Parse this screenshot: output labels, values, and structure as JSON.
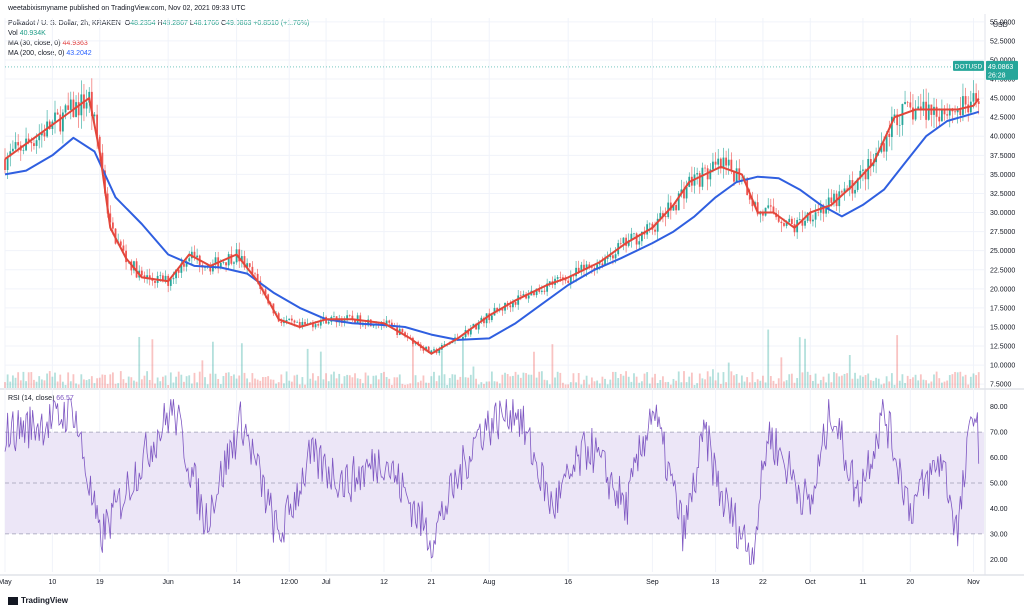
{
  "meta": {
    "author_line": "weetabixismyname published on TradingView.com, Nov 02, 2021 09:33 UTC",
    "brand": "TradingView"
  },
  "legend": {
    "symbol": "Polkadot / U. S. Dollar, 2h, KRAKEN",
    "o_label": "O",
    "o": "48.2354",
    "h_label": "H",
    "h": "49.2867",
    "l_label": "L",
    "l": "48.1766",
    "c_label": "C",
    "c": "49.0863",
    "change": "+0.8510 (+1.76%)",
    "vol_label": "Vol",
    "vol": "40.934K",
    "ma30_label": "MA (30, close, 0)",
    "ma30": "44.9363",
    "ma200_label": "MA (200, close, 0)",
    "ma200": "43.2042",
    "rsi_label": "RSI (14, close)",
    "rsi": "66.57"
  },
  "price_tag": {
    "symbol": "DOTUSD",
    "price": "49.0863",
    "countdown": "26:28"
  },
  "colors": {
    "up": "#26a69a",
    "down": "#ef5350",
    "ma30": "#e2463a",
    "ma200": "#2f5fe0",
    "rsi": "#7e57c2",
    "rsi_band": "#ece6f7"
  },
  "chart_data": [
    {
      "type": "line",
      "title": "",
      "currency": "USD",
      "y_ticks": [
        7.5,
        10.0,
        12.5,
        15.0,
        17.5,
        20.0,
        22.5,
        25.0,
        27.5,
        30.0,
        32.5,
        35.0,
        37.5,
        40.0,
        42.5,
        45.0,
        47.5,
        50.0,
        52.5,
        55.0
      ],
      "ylim": [
        7.0,
        55.5
      ],
      "x_ticks": [
        "May",
        "10",
        "19",
        "Jun",
        "14",
        "12:00",
        "Jul",
        "12",
        "21",
        "Aug",
        "16",
        "Sep",
        "13",
        "22",
        "Oct",
        "11",
        "20",
        "Nov"
      ],
      "x_tick_dates": [
        "2021-05-01",
        "2021-05-10",
        "2021-05-19",
        "2021-06-01",
        "2021-06-14",
        "2021-06-24",
        "2021-07-01",
        "2021-07-12",
        "2021-07-21",
        "2021-08-01",
        "2021-08-16",
        "2021-09-01",
        "2021-09-13",
        "2021-09-22",
        "2021-10-01",
        "2021-10-11",
        "2021-10-20",
        "2021-11-01"
      ],
      "series": [
        {
          "name": "MA (30, close, 0)",
          "x": [
            "2021-05-01",
            "2021-05-04",
            "2021-05-08",
            "2021-05-11",
            "2021-05-14",
            "2021-05-17",
            "2021-05-19",
            "2021-05-21",
            "2021-05-24",
            "2021-05-27",
            "2021-06-01",
            "2021-06-05",
            "2021-06-09",
            "2021-06-14",
            "2021-06-18",
            "2021-06-22",
            "2021-06-26",
            "2021-07-01",
            "2021-07-06",
            "2021-07-12",
            "2021-07-17",
            "2021-07-21",
            "2021-07-26",
            "2021-08-01",
            "2021-08-06",
            "2021-08-12",
            "2021-08-16",
            "2021-08-22",
            "2021-08-27",
            "2021-09-01",
            "2021-09-05",
            "2021-09-08",
            "2021-09-11",
            "2021-09-14",
            "2021-09-18",
            "2021-09-21",
            "2021-09-24",
            "2021-09-28",
            "2021-10-01",
            "2021-10-05",
            "2021-10-09",
            "2021-10-13",
            "2021-10-17",
            "2021-10-21",
            "2021-10-25",
            "2021-10-29",
            "2021-11-01",
            "2021-11-02"
          ],
          "y": [
            37.0,
            38.5,
            40.5,
            42.0,
            43.5,
            45.0,
            38.0,
            28.0,
            24.0,
            21.5,
            21.0,
            24.5,
            23.0,
            24.5,
            21.0,
            16.0,
            15.0,
            16.0,
            16.0,
            15.5,
            13.5,
            11.5,
            13.5,
            16.5,
            18.5,
            20.5,
            21.5,
            23.5,
            26.0,
            28.0,
            31.0,
            34.0,
            35.0,
            36.0,
            35.0,
            30.0,
            30.0,
            28.0,
            30.0,
            31.0,
            33.5,
            36.5,
            42.5,
            43.5,
            43.5,
            43.5,
            44.0,
            44.94
          ]
        },
        {
          "name": "MA (200, close, 0)",
          "x": [
            "2021-05-01",
            "2021-05-05",
            "2021-05-10",
            "2021-05-14",
            "2021-05-18",
            "2021-05-22",
            "2021-05-27",
            "2021-06-01",
            "2021-06-06",
            "2021-06-11",
            "2021-06-16",
            "2021-06-21",
            "2021-06-26",
            "2021-07-01",
            "2021-07-06",
            "2021-07-11",
            "2021-07-16",
            "2021-07-21",
            "2021-07-26",
            "2021-08-01",
            "2021-08-06",
            "2021-08-11",
            "2021-08-16",
            "2021-08-21",
            "2021-08-26",
            "2021-09-01",
            "2021-09-05",
            "2021-09-09",
            "2021-09-13",
            "2021-09-17",
            "2021-09-21",
            "2021-09-25",
            "2021-09-29",
            "2021-10-03",
            "2021-10-07",
            "2021-10-11",
            "2021-10-15",
            "2021-10-19",
            "2021-10-23",
            "2021-10-27",
            "2021-11-01",
            "2021-11-02"
          ],
          "y": [
            35.0,
            35.5,
            37.5,
            39.8,
            38.0,
            32.0,
            28.5,
            24.5,
            23.0,
            22.8,
            22.0,
            19.5,
            17.5,
            16.0,
            15.5,
            15.3,
            15.0,
            14.0,
            13.3,
            13.5,
            15.5,
            18.0,
            20.5,
            22.5,
            24.0,
            26.0,
            27.5,
            29.5,
            32.0,
            34.0,
            34.7,
            34.5,
            33.0,
            31.0,
            29.5,
            31.0,
            33.0,
            36.5,
            40.0,
            42.0,
            43.0,
            43.2
          ]
        },
        {
          "name": "RSI (14, close)",
          "ylim": [
            15,
            85
          ],
          "bands": [
            30,
            70
          ],
          "mid": 50,
          "y_ticks": [
            20.0,
            30.0,
            40.0,
            50.0,
            60.0,
            70.0,
            80.0
          ],
          "x": [
            "2021-05-01",
            "2021-05-11",
            "2021-05-14",
            "2021-05-19",
            "2021-05-26",
            "2021-06-02",
            "2021-06-08",
            "2021-06-15",
            "2021-06-22",
            "2021-06-28",
            "2021-07-05",
            "2021-07-12",
            "2021-07-21",
            "2021-07-30",
            "2021-08-06",
            "2021-08-13",
            "2021-08-20",
            "2021-08-27",
            "2021-09-01",
            "2021-09-07",
            "2021-09-11",
            "2021-09-14",
            "2021-09-20",
            "2021-09-23",
            "2021-10-01",
            "2021-10-05",
            "2021-10-10",
            "2021-10-15",
            "2021-10-20",
            "2021-10-26",
            "2021-10-29",
            "2021-11-01",
            "2021-11-02"
          ],
          "y": [
            70,
            75,
            80,
            28,
            55,
            80,
            35,
            75,
            28,
            60,
            50,
            60,
            28,
            70,
            80,
            40,
            65,
            40,
            80,
            30,
            70,
            45,
            22,
            70,
            40,
            80,
            45,
            78,
            40,
            60,
            30,
            81,
            66.57
          ]
        }
      ]
    },
    {
      "type": "bar",
      "title": "",
      "series": [
        {
          "name": "Vol",
          "last": "40.934K"
        }
      ]
    }
  ]
}
